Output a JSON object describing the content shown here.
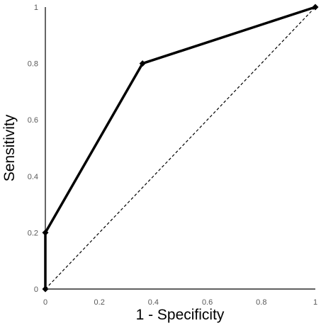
{
  "chart_data": {
    "type": "line",
    "title": "",
    "xlabel": "1 - Specificity",
    "ylabel": "Sensitivity",
    "xlim": [
      0,
      1
    ],
    "ylim": [
      0,
      1
    ],
    "x_ticks": [
      "0",
      "0.2",
      "0.4",
      "0.6",
      "0.8",
      "1"
    ],
    "y_ticks": [
      "0",
      "0.2",
      "0.4",
      "0.6",
      "0.8",
      "1"
    ],
    "grid": false,
    "legend": "none",
    "series": [
      {
        "style": "solid-thick-diamond-markers",
        "color": "#000000",
        "points": [
          {
            "x": 0,
            "y": 0
          },
          {
            "x": 0,
            "y": 0.2
          },
          {
            "x": 0.36,
            "y": 0.8
          },
          {
            "x": 1,
            "y": 1
          }
        ]
      },
      {
        "style": "dashed",
        "color": "#000000",
        "points": [
          {
            "x": 0,
            "y": 0
          },
          {
            "x": 1,
            "y": 1
          }
        ]
      }
    ]
  }
}
